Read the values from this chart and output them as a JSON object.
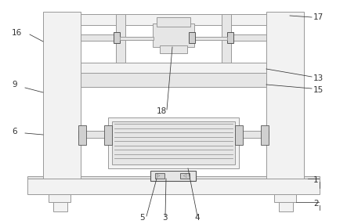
{
  "bg_color": "#ffffff",
  "lc": "#999999",
  "dc": "#555555",
  "fc_light": "#f2f2f2",
  "fc_mid": "#e6e6e6",
  "fc_dark": "#d0d0d0",
  "figsize": [
    4.43,
    2.86
  ],
  "dpi": 100,
  "label_color": "#333333",
  "label_fs": 7.5
}
